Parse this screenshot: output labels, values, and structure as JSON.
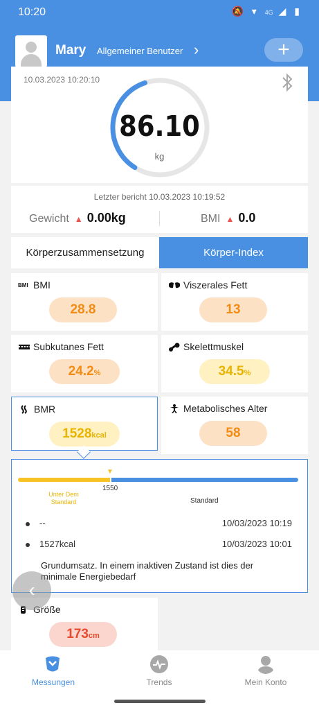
{
  "status_bar": {
    "time": "10:20",
    "icons": "🔕 ▾ ◢ ▮",
    "network": "4G"
  },
  "header": {
    "user_name": "Mary",
    "user_type": "Allgemeiner Benutzer",
    "chevron": "›",
    "add_label": "+"
  },
  "weight": {
    "date": "10.03.2023 10:20:10",
    "value": "86.10",
    "unit": "kg",
    "gauge_fraction": 0.36
  },
  "last_report": {
    "text": "Letzter bericht 10.03.2023 10:19:52",
    "weight_label": "Gewicht",
    "weight_delta": "0.00kg",
    "bmi_label": "BMI",
    "bmi_delta": "0.0",
    "triangle": "▲"
  },
  "tabs": [
    {
      "label": "Körperzusammensetzung"
    },
    {
      "label": "Körper-Index"
    }
  ],
  "metrics": [
    {
      "label": "BMI",
      "icon": "BMI",
      "value": "28.8",
      "unit": ""
    },
    {
      "label": "Viszerales Fett",
      "icon": "organ-icon",
      "value": "13",
      "unit": ""
    },
    {
      "label": "Subkutanes Fett",
      "icon": "skin-layer-icon",
      "value": "24.2",
      "unit": "%"
    },
    {
      "label": "Skelettmuskel",
      "icon": "bone-icon",
      "value": "34.5",
      "unit": "%"
    },
    {
      "label": "BMR",
      "icon": "flame-icon",
      "value": "1528",
      "unit": "kcal"
    },
    {
      "label": "Metabolisches Alter",
      "icon": "person-icon",
      "value": "58",
      "unit": ""
    },
    {
      "label": "Größe",
      "icon": "height-icon",
      "value": "173",
      "unit": "cm"
    }
  ],
  "detail": {
    "marker": "▼",
    "threshold": "1550",
    "range_low": "Unter Dem Standard",
    "range_std": "Standard",
    "history": [
      {
        "value": "--",
        "date": "10/03/2023 10:19"
      },
      {
        "value": "1527kcal",
        "date": "10/03/2023 10:01"
      }
    ],
    "description": "Grundumsatz. In einem inaktiven Zustand ist dies der minimale Energiebedarf"
  },
  "float_back": "‹",
  "bottom_nav": [
    {
      "label": "Messungen",
      "active": true
    },
    {
      "label": "Trends",
      "active": false
    },
    {
      "label": "Mein Konto",
      "active": false
    }
  ],
  "colors": {
    "primary": "#4a90e2",
    "orange": "#f28c14",
    "yellow": "#e8b400",
    "red": "#e64a2f",
    "up_arrow": "#e9524d"
  }
}
